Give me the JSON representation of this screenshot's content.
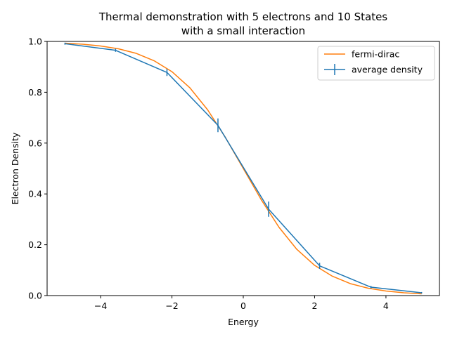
{
  "chart_data": {
    "type": "line",
    "title": "Thermal demonstration with 5 electrons and 10 States",
    "subtitle": "with a small interaction",
    "xlabel": "Energy",
    "ylabel": "Electron Density",
    "xlim": [
      -5.5,
      5.5
    ],
    "ylim": [
      0.0,
      1.0
    ],
    "xticks": [
      -4,
      -2,
      0,
      2,
      4
    ],
    "xtick_labels": [
      "−4",
      "−2",
      "0",
      "2",
      "4"
    ],
    "yticks": [
      0.0,
      0.2,
      0.4,
      0.6,
      0.8,
      1.0
    ],
    "ytick_labels": [
      "0.0",
      "0.2",
      "0.4",
      "0.6",
      "0.8",
      "1.0"
    ],
    "grid": false,
    "legend_placement": "top-right",
    "series": [
      {
        "name": "fermi-dirac",
        "kind": "curve",
        "color": "#ff7f0e",
        "x": [
          -5.0,
          -4.5,
          -4.0,
          -3.5,
          -3.0,
          -2.5,
          -2.0,
          -1.5,
          -1.0,
          -0.5,
          0.0,
          0.5,
          1.0,
          1.5,
          2.0,
          2.5,
          3.0,
          3.5,
          4.0,
          4.5,
          5.0
        ],
        "y": [
          0.993,
          0.989,
          0.982,
          0.971,
          0.953,
          0.924,
          0.881,
          0.818,
          0.731,
          0.622,
          0.5,
          0.378,
          0.269,
          0.182,
          0.119,
          0.076,
          0.047,
          0.029,
          0.018,
          0.011,
          0.007
        ]
      },
      {
        "name": "average density",
        "kind": "errorbar",
        "color": "#1f77b4",
        "x": [
          -5.0,
          -3.58,
          -2.14,
          -0.71,
          0.71,
          2.14,
          3.58,
          5.0
        ],
        "y": [
          0.991,
          0.965,
          0.878,
          0.67,
          0.34,
          0.117,
          0.033,
          0.011
        ],
        "yerr": [
          0.004,
          0.006,
          0.014,
          0.027,
          0.03,
          0.012,
          0.005,
          0.003
        ]
      }
    ]
  }
}
